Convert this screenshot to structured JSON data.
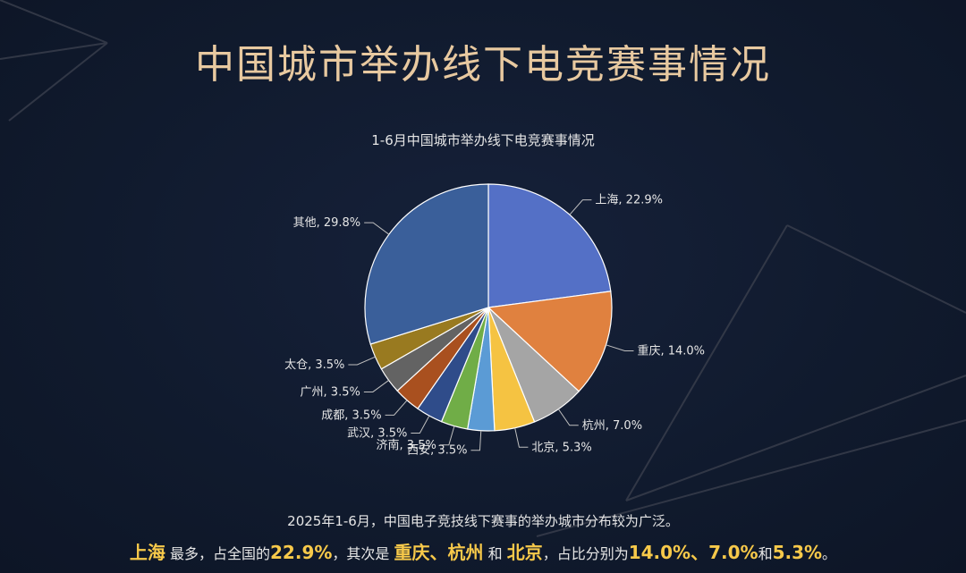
{
  "page": {
    "title": "中国城市举办线下电竞赛事情况"
  },
  "chart_data": {
    "type": "pie",
    "title": "1-6月中国城市举办线下电竞赛事情况",
    "unit": "%",
    "slices": [
      {
        "label": "上海",
        "value": 22.9,
        "color": "#5470c6"
      },
      {
        "label": "重庆",
        "value": 14.0,
        "color": "#e0813f"
      },
      {
        "label": "杭州",
        "value": 7.0,
        "color": "#a5a5a5"
      },
      {
        "label": "北京",
        "value": 5.3,
        "color": "#f5c342"
      },
      {
        "label": "西安",
        "value": 3.5,
        "color": "#5b9bd5"
      },
      {
        "label": "济南",
        "value": 3.5,
        "color": "#70ad47"
      },
      {
        "label": "武汉",
        "value": 3.5,
        "color": "#2f4c8a"
      },
      {
        "label": "成都",
        "value": 3.5,
        "color": "#a9501f"
      },
      {
        "label": "广州",
        "value": 3.5,
        "color": "#636363"
      },
      {
        "label": "太仓",
        "value": 3.5,
        "color": "#997a20"
      },
      {
        "label": "其他",
        "value": 29.8,
        "color": "#3a5f9a"
      }
    ]
  },
  "summary": {
    "line1": "2025年1-6月，中国电子竞技线下赛事的举办城市分布较为广泛。",
    "line2": {
      "city1": "上海",
      "t1": " 最多，占全国的",
      "pct1": "22.9%",
      "t2": "，其次是 ",
      "city2": "重庆",
      "sep1": "、",
      "city3": "杭州",
      "t3": " 和 ",
      "city4": "北京",
      "t4": "，占比分别为",
      "pct2": "14.0%",
      "sep2": "、",
      "pct3": "7.0%",
      "t5": "和",
      "pct4": "5.3%",
      "t6": "。"
    }
  }
}
